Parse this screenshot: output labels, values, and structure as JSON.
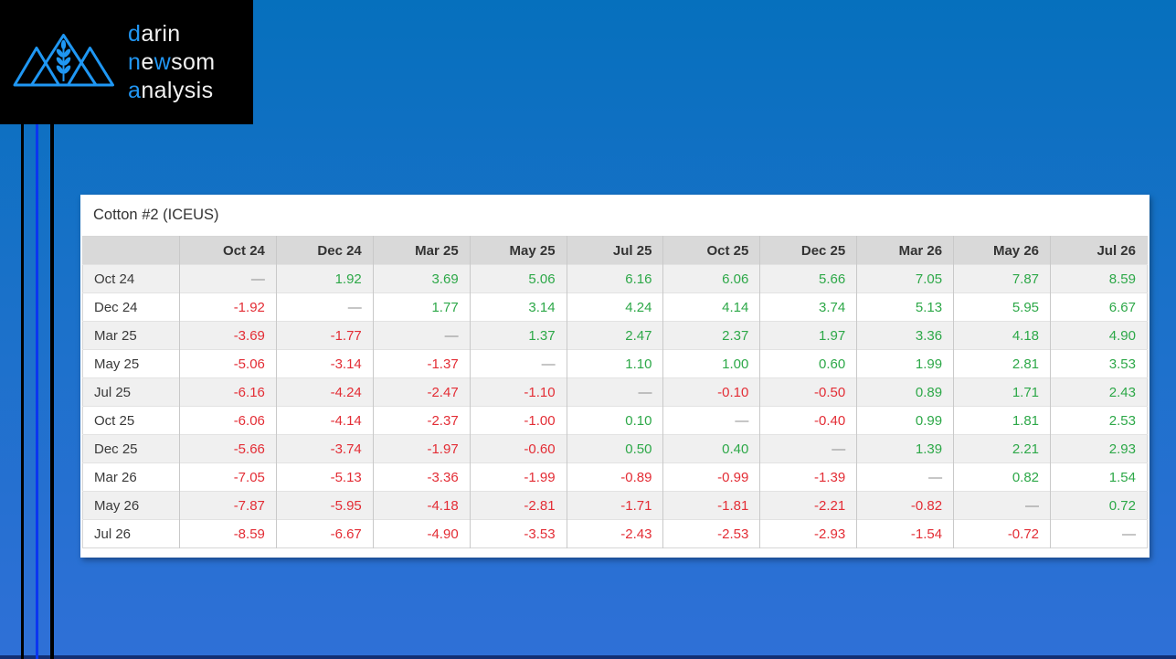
{
  "background": {
    "gradient_top": "#0670bd",
    "gradient_bottom": "#2f70d7",
    "bottom_strip_color": "#122f74",
    "stripe_black_color": "#000000",
    "stripe_blue_color": "#0b35f0"
  },
  "logo": {
    "accent_color": "#2196f3",
    "line1": {
      "seg1": "d",
      "seg2": "arin"
    },
    "line2": {
      "seg1": "n",
      "seg2": "e",
      "seg3": "w",
      "seg4": "som"
    },
    "line3": {
      "seg1": "a",
      "seg2": "nalysis"
    }
  },
  "table": {
    "title": "Cotton #2 (ICEUS)",
    "columns": [
      "Oct 24",
      "Dec 24",
      "Mar 25",
      "May 25",
      "Jul 25",
      "Oct 25",
      "Dec 25",
      "Mar 26",
      "May 26",
      "Jul 26"
    ],
    "rows": [
      {
        "label": "Oct 24",
        "values": [
          "—",
          "1.92",
          "3.69",
          "5.06",
          "6.16",
          "6.06",
          "5.66",
          "7.05",
          "7.87",
          "8.59"
        ]
      },
      {
        "label": "Dec 24",
        "values": [
          "-1.92",
          "—",
          "1.77",
          "3.14",
          "4.24",
          "4.14",
          "3.74",
          "5.13",
          "5.95",
          "6.67"
        ]
      },
      {
        "label": "Mar 25",
        "values": [
          "-3.69",
          "-1.77",
          "—",
          "1.37",
          "2.47",
          "2.37",
          "1.97",
          "3.36",
          "4.18",
          "4.90"
        ]
      },
      {
        "label": "May 25",
        "values": [
          "-5.06",
          "-3.14",
          "-1.37",
          "—",
          "1.10",
          "1.00",
          "0.60",
          "1.99",
          "2.81",
          "3.53"
        ]
      },
      {
        "label": "Jul 25",
        "values": [
          "-6.16",
          "-4.24",
          "-2.47",
          "-1.10",
          "—",
          "-0.10",
          "-0.50",
          "0.89",
          "1.71",
          "2.43"
        ]
      },
      {
        "label": "Oct 25",
        "values": [
          "-6.06",
          "-4.14",
          "-2.37",
          "-1.00",
          "0.10",
          "—",
          "-0.40",
          "0.99",
          "1.81",
          "2.53"
        ]
      },
      {
        "label": "Dec 25",
        "values": [
          "-5.66",
          "-3.74",
          "-1.97",
          "-0.60",
          "0.50",
          "0.40",
          "—",
          "1.39",
          "2.21",
          "2.93"
        ]
      },
      {
        "label": "Mar 26",
        "values": [
          "-7.05",
          "-5.13",
          "-3.36",
          "-1.99",
          "-0.89",
          "-0.99",
          "-1.39",
          "—",
          "0.82",
          "1.54"
        ]
      },
      {
        "label": "May 26",
        "values": [
          "-7.87",
          "-5.95",
          "-4.18",
          "-2.81",
          "-1.71",
          "-1.81",
          "-2.21",
          "-0.82",
          "—",
          "0.72"
        ]
      },
      {
        "label": "Jul 26",
        "values": [
          "-8.59",
          "-6.67",
          "-4.90",
          "-3.53",
          "-2.43",
          "-2.53",
          "-2.93",
          "-1.54",
          "-0.72",
          "—"
        ]
      }
    ],
    "positive_color": "#2da848",
    "negative_color": "#e32d35",
    "dash_color": "#8c8c8c"
  }
}
